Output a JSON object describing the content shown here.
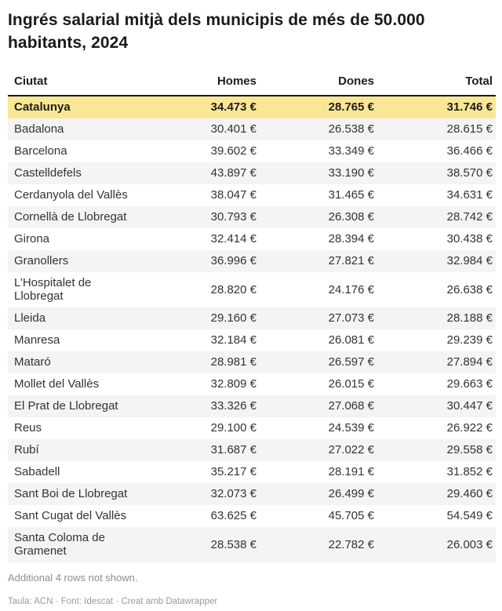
{
  "header": {
    "title": "Ingrés salarial mitjà dels municipis de més de 50.000 habitants, 2024"
  },
  "table": {
    "columns": [
      "Ciutat",
      "Homes",
      "Dones",
      "Total"
    ],
    "rows": [
      {
        "city": "Catalunya",
        "homes": "34.473 €",
        "dones": "28.765 €",
        "total": "31.746 €",
        "highlight": true
      },
      {
        "city": "Badalona",
        "homes": "30.401 €",
        "dones": "26.538 €",
        "total": "28.615 €"
      },
      {
        "city": "Barcelona",
        "homes": "39.602 €",
        "dones": "33.349 €",
        "total": "36.466 €"
      },
      {
        "city": "Castelldefels",
        "homes": "43.897 €",
        "dones": "33.190 €",
        "total": "38.570 €"
      },
      {
        "city": "Cerdanyola del Vallès",
        "homes": "38.047 €",
        "dones": "31.465 €",
        "total": "34.631 €"
      },
      {
        "city": "Cornellà de Llobregat",
        "homes": "30.793 €",
        "dones": "26.308 €",
        "total": "28.742 €"
      },
      {
        "city": "Girona",
        "homes": "32.414 €",
        "dones": "28.394 €",
        "total": "30.438 €"
      },
      {
        "city": "Granollers",
        "homes": "36.996 €",
        "dones": "27.821 €",
        "total": "32.984 €"
      },
      {
        "city": "L’Hospitalet de Llobregat",
        "homes": "28.820 €",
        "dones": "24.176 €",
        "total": "26.638 €"
      },
      {
        "city": "Lleida",
        "homes": "29.160 €",
        "dones": "27.073 €",
        "total": "28.188 €"
      },
      {
        "city": "Manresa",
        "homes": "32.184 €",
        "dones": "26.081 €",
        "total": "29.239 €"
      },
      {
        "city": "Mataró",
        "homes": "28.981 €",
        "dones": "26.597 €",
        "total": "27.894 €"
      },
      {
        "city": "Mollet del Vallès",
        "homes": "32.809 €",
        "dones": "26.015 €",
        "total": "29.663 €"
      },
      {
        "city": "El Prat de Llobregat",
        "homes": "33.326 €",
        "dones": "27.068 €",
        "total": "30.447 €"
      },
      {
        "city": "Reus",
        "homes": "29.100 €",
        "dones": "24.539 €",
        "total": "26.922 €"
      },
      {
        "city": "Rubí",
        "homes": "31.687 €",
        "dones": "27.022 €",
        "total": "29.558 €"
      },
      {
        "city": "Sabadell",
        "homes": "35.217 €",
        "dones": "28.191 €",
        "total": "31.852 €"
      },
      {
        "city": "Sant Boi de Llobregat",
        "homes": "32.073 €",
        "dones": "26.499 €",
        "total": "29.460 €"
      },
      {
        "city": "Sant Cugat del Vallès",
        "homes": "63.625 €",
        "dones": "45.705 €",
        "total": "54.549 €"
      },
      {
        "city": "Santa Coloma de Gramenet",
        "homes": "28.538 €",
        "dones": "22.782 €",
        "total": "26.003 €"
      }
    ]
  },
  "footer": {
    "note": "Additional 4 rows not shown.",
    "attribution": "Taula: ACN · Font: Idescat · Creat amb Datawrapper"
  },
  "colors": {
    "highlight_row": "#F9E796",
    "stripe": "#F4F4F4",
    "header_border": "#1A1A1A",
    "text": "#333333",
    "muted": "#8E8E8E",
    "muted_light": "#9B9B9B"
  },
  "chart_data": {
    "type": "table",
    "title": "Ingrés salarial mitjà dels municipis de més de 50.000 habitants, 2024",
    "columns": [
      "Ciutat",
      "Homes",
      "Dones",
      "Total"
    ],
    "unit": "€ (values use dot as thousands separator)",
    "highlighted_row": "Catalunya",
    "rows_numeric": [
      [
        "Catalunya",
        34473,
        28765,
        31746
      ],
      [
        "Badalona",
        30401,
        26538,
        28615
      ],
      [
        "Barcelona",
        39602,
        33349,
        36466
      ],
      [
        "Castelldefels",
        43897,
        33190,
        38570
      ],
      [
        "Cerdanyola del Vallès",
        38047,
        31465,
        34631
      ],
      [
        "Cornellà de Llobregat",
        30793,
        26308,
        28742
      ],
      [
        "Girona",
        32414,
        28394,
        30438
      ],
      [
        "Granollers",
        36996,
        27821,
        32984
      ],
      [
        "L’Hospitalet de Llobregat",
        28820,
        24176,
        26638
      ],
      [
        "Lleida",
        29160,
        27073,
        28188
      ],
      [
        "Manresa",
        32184,
        26081,
        29239
      ],
      [
        "Mataró",
        28981,
        26597,
        27894
      ],
      [
        "Mollet del Vallès",
        32809,
        26015,
        29663
      ],
      [
        "El Prat de Llobregat",
        33326,
        27068,
        30447
      ],
      [
        "Reus",
        29100,
        24539,
        26922
      ],
      [
        "Rubí",
        31687,
        27022,
        29558
      ],
      [
        "Sabadell",
        35217,
        28191,
        31852
      ],
      [
        "Sant Boi de Llobregat",
        32073,
        26499,
        29460
      ],
      [
        "Sant Cugat del Vallès",
        63625,
        45705,
        54549
      ],
      [
        "Santa Coloma de Gramenet",
        28538,
        22782,
        26003
      ]
    ],
    "note": "Additional 4 rows not shown.",
    "source": "Taula: ACN · Font: Idescat · Creat amb Datawrapper"
  }
}
